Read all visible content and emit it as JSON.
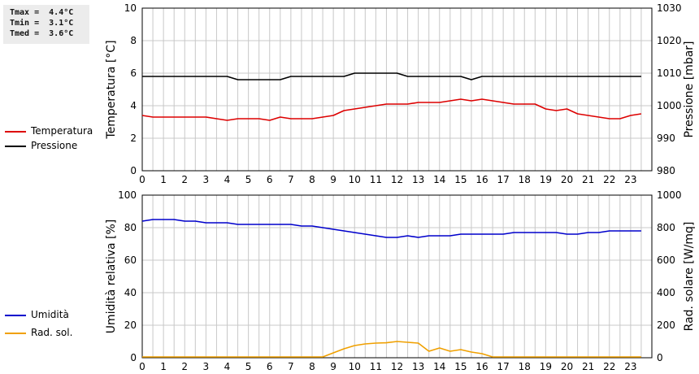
{
  "stats": {
    "line1": "Tmax =  4.4°C",
    "line2": "Tmin =  3.1°C",
    "line3": "Tmed =  3.6°C"
  },
  "colors": {
    "temperature": "#dd0000",
    "pressure": "#000000",
    "humidity": "#0000cc",
    "solar": "#f0a000",
    "grid": "#c8c8c8"
  },
  "chart_data": [
    {
      "type": "line",
      "title": "",
      "xlabel": "",
      "ylabel": "Temperatura [°C]",
      "ylabel_right": "Pressione [mbar]",
      "xlim": [
        0,
        24
      ],
      "x_ticks": [
        0,
        1,
        2,
        3,
        4,
        5,
        6,
        7,
        8,
        9,
        10,
        11,
        12,
        13,
        14,
        15,
        16,
        17,
        18,
        19,
        20,
        21,
        22,
        23
      ],
      "ylim": [
        0,
        10
      ],
      "y_ticks": [
        0,
        2,
        4,
        6,
        8,
        10
      ],
      "ylim_right": [
        980,
        1030
      ],
      "y_ticks_right": [
        980,
        990,
        1000,
        1010,
        1020,
        1030
      ],
      "grid": true,
      "legend": "left",
      "series": [
        {
          "name": "Temperatura",
          "axis": "left",
          "color": "#dd0000",
          "x": [
            0,
            0.5,
            1,
            1.5,
            2,
            2.5,
            3,
            3.5,
            4,
            4.5,
            5,
            5.5,
            6,
            6.5,
            7,
            7.5,
            8,
            8.5,
            9,
            9.5,
            10,
            10.5,
            11,
            11.5,
            12,
            12.5,
            13,
            13.5,
            14,
            14.5,
            15,
            15.5,
            16,
            16.5,
            17,
            17.5,
            18,
            18.5,
            19,
            19.5,
            20,
            20.5,
            21,
            21.5,
            22,
            22.5,
            23,
            23.5
          ],
          "values": [
            3.4,
            3.3,
            3.3,
            3.3,
            3.3,
            3.3,
            3.3,
            3.2,
            3.1,
            3.2,
            3.2,
            3.2,
            3.1,
            3.3,
            3.2,
            3.2,
            3.2,
            3.3,
            3.4,
            3.7,
            3.8,
            3.9,
            4.0,
            4.1,
            4.1,
            4.1,
            4.2,
            4.2,
            4.2,
            4.3,
            4.4,
            4.3,
            4.4,
            4.3,
            4.2,
            4.1,
            4.1,
            4.1,
            3.8,
            3.7,
            3.8,
            3.5,
            3.4,
            3.3,
            3.2,
            3.2,
            3.4,
            3.5
          ]
        },
        {
          "name": "Pressione",
          "axis": "right",
          "color": "#000000",
          "x": [
            0,
            0.5,
            1,
            1.5,
            2,
            2.5,
            3,
            3.5,
            4,
            4.5,
            5,
            5.5,
            6,
            6.5,
            7,
            7.5,
            8,
            8.5,
            9,
            9.5,
            10,
            10.5,
            11,
            11.5,
            12,
            12.5,
            13,
            13.5,
            14,
            14.5,
            15,
            15.5,
            16,
            16.5,
            17,
            17.5,
            18,
            18.5,
            19,
            19.5,
            20,
            20.5,
            21,
            21.5,
            22,
            22.5,
            23,
            23.5
          ],
          "values": [
            1009,
            1009,
            1009,
            1009,
            1009,
            1009,
            1009,
            1009,
            1009,
            1008,
            1008,
            1008,
            1008,
            1008,
            1009,
            1009,
            1009,
            1009,
            1009,
            1009,
            1010,
            1010,
            1010,
            1010,
            1010,
            1009,
            1009,
            1009,
            1009,
            1009,
            1009,
            1008,
            1009,
            1009,
            1009,
            1009,
            1009,
            1009,
            1009,
            1009,
            1009,
            1009,
            1009,
            1009,
            1009,
            1009,
            1009,
            1009
          ]
        }
      ]
    },
    {
      "type": "line",
      "title": "",
      "xlabel": "",
      "ylabel": "Umidità relativa [%]",
      "ylabel_right": "Rad. solare [W/mq]",
      "xlim": [
        0,
        24
      ],
      "x_ticks": [
        0,
        1,
        2,
        3,
        4,
        5,
        6,
        7,
        8,
        9,
        10,
        11,
        12,
        13,
        14,
        15,
        16,
        17,
        18,
        19,
        20,
        21,
        22,
        23
      ],
      "ylim": [
        0,
        100
      ],
      "y_ticks": [
        0,
        20,
        40,
        60,
        80,
        100
      ],
      "ylim_right": [
        0,
        1000
      ],
      "y_ticks_right": [
        0,
        200,
        400,
        600,
        800,
        1000
      ],
      "grid": true,
      "legend": "left",
      "series": [
        {
          "name": "Umidità",
          "axis": "left",
          "color": "#0000cc",
          "x": [
            0,
            0.5,
            1,
            1.5,
            2,
            2.5,
            3,
            3.5,
            4,
            4.5,
            5,
            5.5,
            6,
            6.5,
            7,
            7.5,
            8,
            8.5,
            9,
            9.5,
            10,
            10.5,
            11,
            11.5,
            12,
            12.5,
            13,
            13.5,
            14,
            14.5,
            15,
            15.5,
            16,
            16.5,
            17,
            17.5,
            18,
            18.5,
            19,
            19.5,
            20,
            20.5,
            21,
            21.5,
            22,
            22.5,
            23,
            23.5
          ],
          "values": [
            84,
            85,
            85,
            85,
            84,
            84,
            83,
            83,
            83,
            82,
            82,
            82,
            82,
            82,
            82,
            81,
            81,
            80,
            79,
            78,
            77,
            76,
            75,
            74,
            74,
            75,
            74,
            75,
            75,
            75,
            76,
            76,
            76,
            76,
            76,
            77,
            77,
            77,
            77,
            77,
            76,
            76,
            77,
            77,
            78,
            78,
            78,
            78
          ]
        },
        {
          "name": "Rad. sol.",
          "axis": "right",
          "color": "#f0a000",
          "x": [
            0,
            1,
            2,
            3,
            4,
            5,
            6,
            7,
            8,
            8.5,
            9,
            9.5,
            10,
            10.5,
            11,
            11.5,
            12,
            12.5,
            13,
            13.5,
            14,
            14.5,
            15,
            15.5,
            16,
            16.5,
            17,
            18,
            19,
            20,
            21,
            22,
            23,
            23.5
          ],
          "values": [
            5,
            5,
            5,
            5,
            5,
            5,
            5,
            5,
            5,
            5,
            30,
            55,
            75,
            85,
            90,
            92,
            100,
            95,
            90,
            40,
            60,
            40,
            50,
            35,
            25,
            5,
            5,
            5,
            5,
            5,
            5,
            5,
            5,
            5
          ]
        }
      ]
    }
  ]
}
